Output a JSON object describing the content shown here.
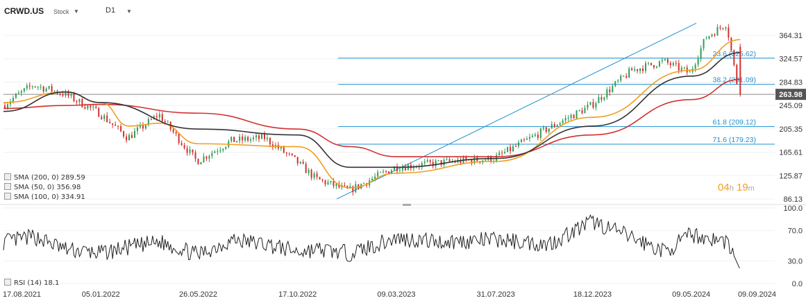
{
  "header": {
    "ticker": "CRWD.US",
    "type": "Stock",
    "timeframe": "D1"
  },
  "legend": [
    {
      "label": "SMA (200, 0) 289.59",
      "color": "#d32f2f"
    },
    {
      "label": "SMA (50, 0) 356.98",
      "color": "#f29d1f"
    },
    {
      "label": "SMA (100, 0) 334.91",
      "color": "#333333"
    }
  ],
  "rsi_legend": "RSI (14) 18.1",
  "timer": {
    "hours": "04",
    "h": "h",
    "minutes": "19",
    "m": "m"
  },
  "colors": {
    "sma200": "#d32f2f",
    "sma50": "#f29d1f",
    "sma100": "#333333",
    "up": "#2e9e52",
    "down": "#d32f2f",
    "fib": "#1f8fd0",
    "price_badge": "#555555"
  },
  "chart_data": [
    {
      "type": "line",
      "title": "",
      "x_ticks": [
        "17.08.2021",
        "05.01.2022",
        "26.05.2022",
        "17.10.2022",
        "09.03.2023",
        "31.07.2023",
        "18.12.2023",
        "09.05.2024",
        "09.09.2024"
      ],
      "y_ticks": [
        86.13,
        125.87,
        165.61,
        205.35,
        245.09,
        284.83,
        324.57,
        364.31
      ],
      "ylim": [
        86.13,
        364.31
      ],
      "last_price": 263.98,
      "fib_levels": [
        {
          "label": "23.6 (325.62)",
          "value": 325.62
        },
        {
          "label": "38.2 (281.09)",
          "value": 281.09
        },
        {
          "label": "61.8 (209.12)",
          "value": 209.12
        },
        {
          "label": "71.6 (179.23)",
          "value": 179.23
        }
      ],
      "close_series": {
        "x": [
          "17.08.2021",
          "01.10.2021",
          "15.11.2021",
          "05.01.2022",
          "15.02.2022",
          "01.04.2022",
          "26.05.2022",
          "15.07.2022",
          "01.09.2022",
          "17.10.2022",
          "15.11.2022",
          "01.01.2023",
          "09.03.2023",
          "15.05.2023",
          "31.07.2023",
          "15.10.2023",
          "18.12.2023",
          "15.02.2024",
          "01.04.2024",
          "09.05.2024",
          "01.06.2024",
          "01.07.2024",
          "19.07.2024"
        ],
        "values": [
          245,
          280,
          265,
          232,
          190,
          230,
          150,
          185,
          190,
          150,
          120,
          100,
          140,
          148,
          155,
          205,
          245,
          305,
          320,
          300,
          360,
          385,
          263.98
        ]
      },
      "series": [
        {
          "name": "SMA (200, 0) 289.59",
          "x": [
            "17.08.2021",
            "15.11.2021",
            "05.01.2022",
            "26.05.2022",
            "17.10.2022",
            "01.01.2023",
            "09.03.2023",
            "31.07.2023",
            "18.12.2023",
            "09.05.2024",
            "19.07.2024"
          ],
          "values": [
            240,
            245,
            247,
            232,
            205,
            175,
            158,
            158,
            195,
            255,
            289.59
          ]
        },
        {
          "name": "SMA (50, 0) 356.98",
          "x": [
            "17.08.2021",
            "15.11.2021",
            "05.01.2022",
            "15.02.2022",
            "01.04.2022",
            "26.05.2022",
            "17.10.2022",
            "01.01.2023",
            "09.03.2023",
            "31.07.2023",
            "18.12.2023",
            "09.05.2024",
            "19.07.2024"
          ],
          "values": [
            250,
            268,
            250,
            210,
            215,
            180,
            175,
            105,
            130,
            150,
            225,
            305,
            356.98
          ]
        },
        {
          "name": "SMA (100, 0) 334.91",
          "x": [
            "17.08.2021",
            "15.11.2021",
            "05.01.2022",
            "26.05.2022",
            "17.10.2022",
            "01.01.2023",
            "09.03.2023",
            "31.07.2023",
            "18.12.2023",
            "09.05.2024",
            "19.07.2024"
          ],
          "values": [
            235,
            268,
            250,
            205,
            195,
            140,
            140,
            155,
            210,
            295,
            334.91
          ]
        }
      ]
    },
    {
      "type": "line",
      "title": "",
      "y_ticks": [
        0.0,
        30.0,
        70.0,
        100.0
      ],
      "ylim": [
        0,
        100
      ],
      "series": [
        {
          "name": "RSI (14) 18.1",
          "x": [
            "17.08.2021",
            "01.10.2021",
            "15.11.2021",
            "05.01.2022",
            "15.02.2022",
            "01.04.2022",
            "26.05.2022",
            "15.07.2022",
            "01.09.2022",
            "17.10.2022",
            "15.11.2022",
            "01.01.2023",
            "09.03.2023",
            "15.05.2023",
            "31.07.2023",
            "15.10.2023",
            "18.12.2023",
            "15.02.2024",
            "01.04.2024",
            "09.05.2024",
            "01.06.2024",
            "01.07.2024",
            "19.07.2024"
          ],
          "values": [
            55,
            62,
            45,
            40,
            48,
            55,
            38,
            58,
            52,
            42,
            45,
            40,
            60,
            55,
            58,
            52,
            82,
            60,
            42,
            65,
            60,
            55,
            18.1
          ]
        }
      ]
    }
  ]
}
